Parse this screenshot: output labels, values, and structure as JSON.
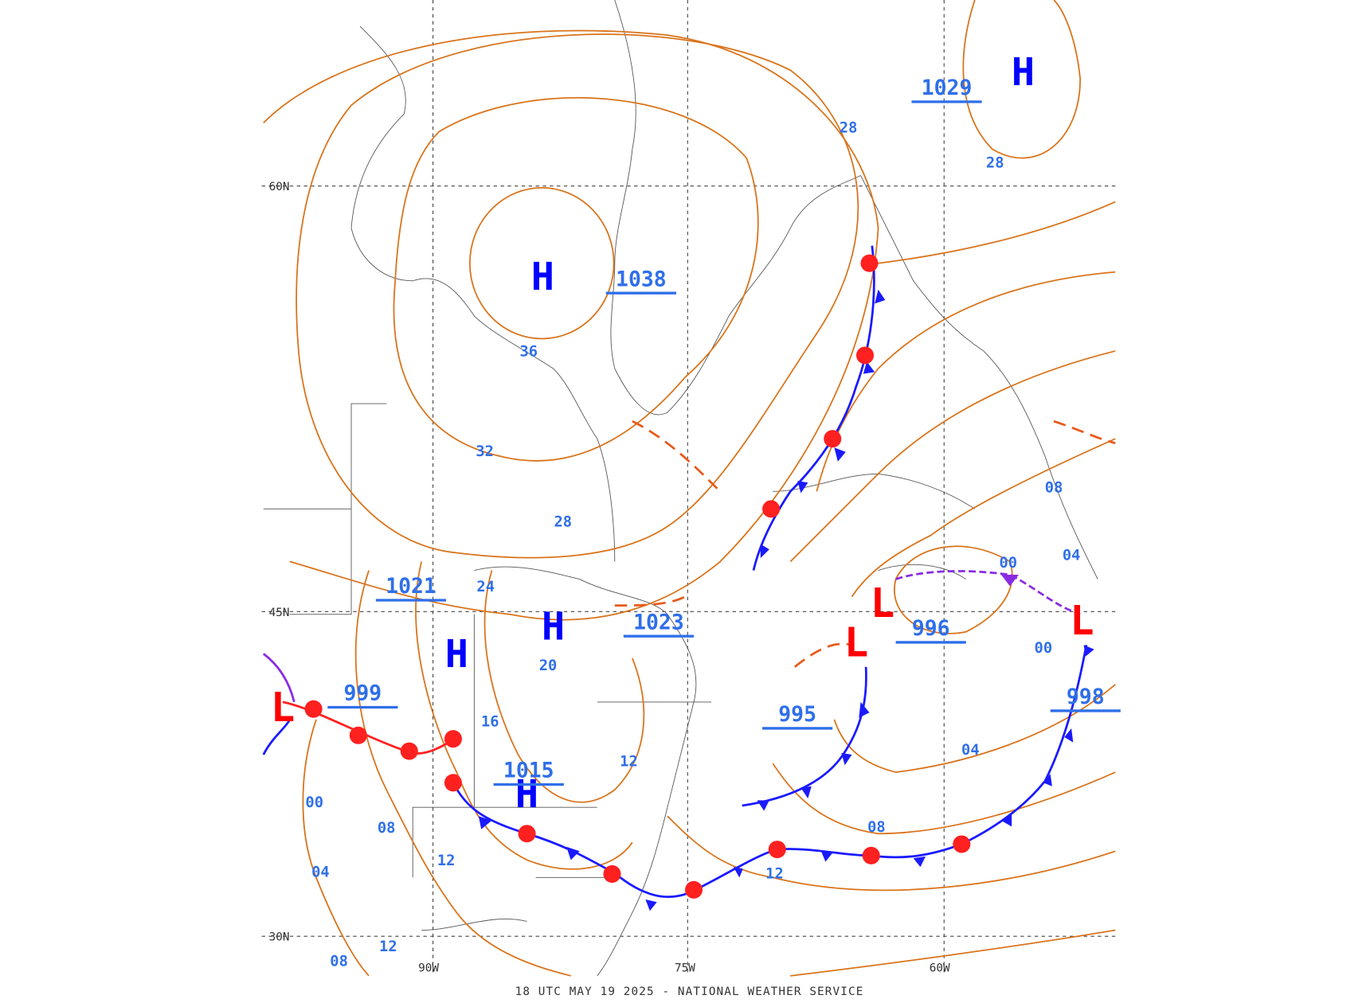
{
  "pressure_centers": [
    {
      "symbol": "H",
      "pressure": "1038"
    },
    {
      "symbol": "H",
      "pressure": "1029"
    },
    {
      "symbol": "H",
      "pressure": "1023"
    },
    {
      "symbol": "H",
      "pressure": "1021"
    },
    {
      "symbol": "H",
      "pressure": "1015"
    },
    {
      "symbol": "L",
      "pressure": "999"
    },
    {
      "symbol": "L",
      "pressure": "996"
    },
    {
      "symbol": "L",
      "pressure": "995"
    },
    {
      "symbol": "L",
      "pressure": "998"
    }
  ],
  "isobar_labels": [
    "28",
    "28",
    "36",
    "32",
    "28",
    "24",
    "20",
    "16",
    "12",
    "08",
    "04",
    "00",
    "00",
    "04",
    "08",
    "12",
    "00",
    "08",
    "12",
    "04",
    "12",
    "08"
  ],
  "grid_labels": [
    "60N",
    "45N",
    "30N",
    "90W",
    "75W",
    "60W"
  ],
  "footer": "18 UTC MAY 19 2025 - NATIONAL WEATHER SERVICE"
}
